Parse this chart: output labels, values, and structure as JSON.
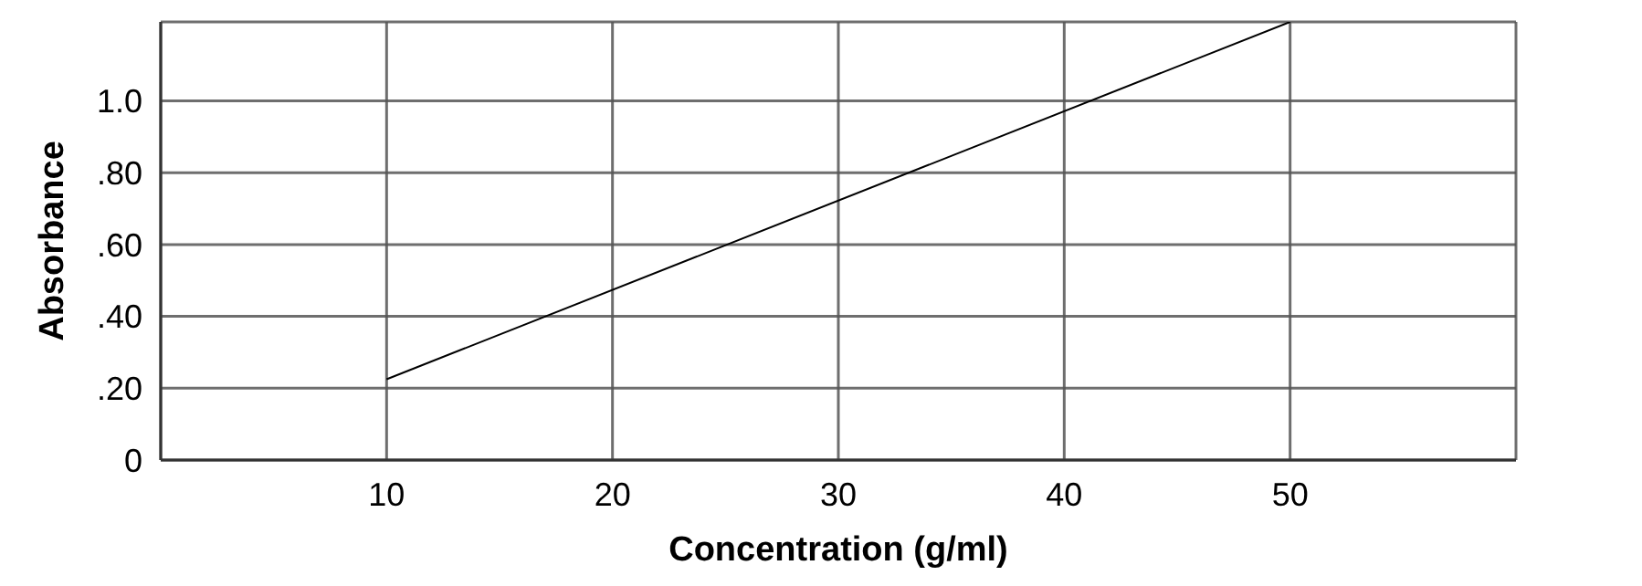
{
  "chart_data": {
    "type": "line",
    "xlabel": "Concentration (g/ml)",
    "ylabel": "Absorbance",
    "x": [
      10,
      50
    ],
    "series": [
      {
        "color": "#000000",
        "values": [
          0.225,
          1.22
        ]
      }
    ],
    "xlim": [
      0,
      60
    ],
    "xticks": [
      10,
      20,
      30,
      40,
      50
    ],
    "ylim": [
      0,
      1.22
    ],
    "yticks": [
      0,
      {
        "value": 0.2,
        "label": ".20"
      },
      {
        "value": 0.4,
        "label": ".40"
      },
      {
        "value": 0.6,
        "label": ".60"
      },
      {
        "value": 0.8,
        "label": ".80"
      },
      {
        "value": 1,
        "label": "1.0"
      }
    ],
    "grid": true,
    "marker": "none",
    "line_style": "solid"
  }
}
